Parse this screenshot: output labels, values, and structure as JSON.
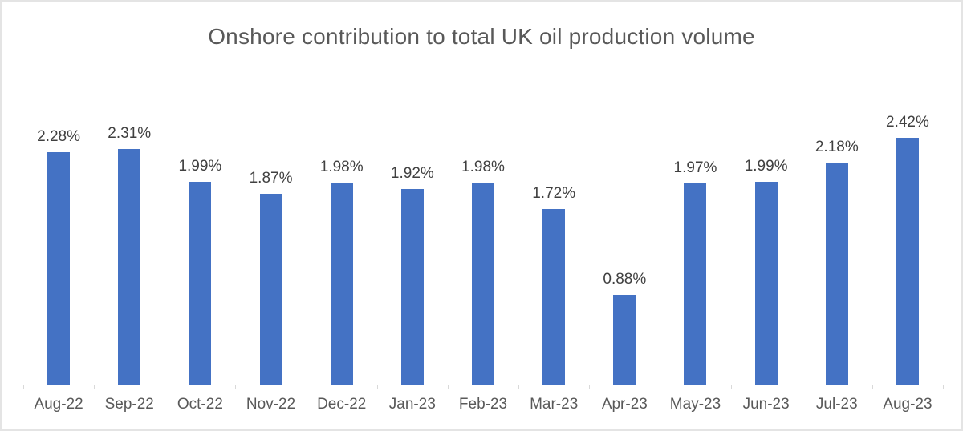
{
  "chart_data": {
    "type": "bar",
    "title": "Onshore contribution to total UK oil production volume",
    "categories": [
      "Aug-22",
      "Sep-22",
      "Oct-22",
      "Nov-22",
      "Dec-22",
      "Jan-23",
      "Feb-23",
      "Mar-23",
      "Apr-23",
      "May-23",
      "Jun-23",
      "Jul-23",
      "Aug-23"
    ],
    "values": [
      2.28,
      2.31,
      1.99,
      1.87,
      1.98,
      1.92,
      1.98,
      1.72,
      0.88,
      1.97,
      1.99,
      2.18,
      2.42
    ],
    "data_labels": [
      "2.28%",
      "2.31%",
      "1.99%",
      "1.87%",
      "1.98%",
      "1.92%",
      "1.98%",
      "1.72%",
      "0.88%",
      "1.97%",
      "1.99%",
      "2.18%",
      "2.42%"
    ],
    "xlabel": "",
    "ylabel": "",
    "ylim": [
      0,
      2.42
    ],
    "grid": false,
    "legend": false,
    "bar_color": "#4472c4",
    "title_color": "#595959",
    "data_label_color": "#404040",
    "axis_label_color": "#595959",
    "axis_line_color": "#d9d9d9"
  }
}
